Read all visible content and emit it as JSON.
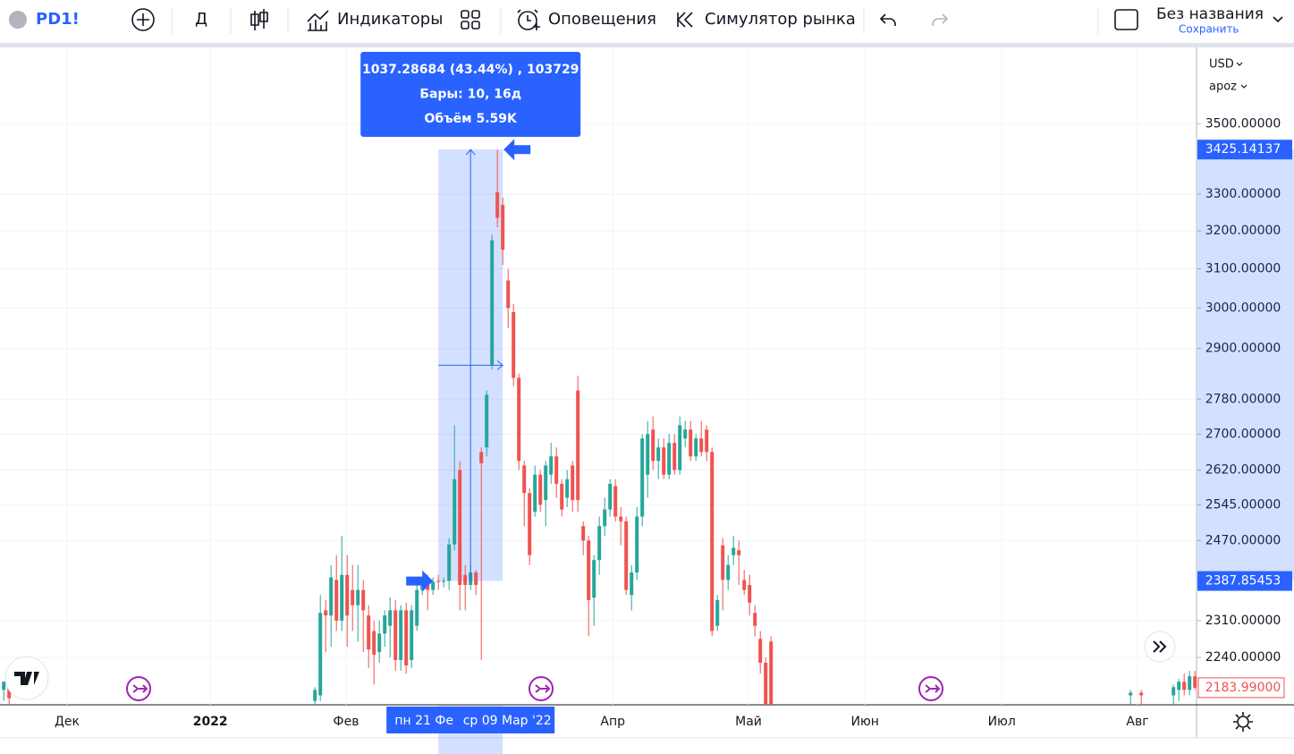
{
  "toolbar": {
    "symbol": "PD1!",
    "interval": "Д",
    "indicators": "Индикаторы",
    "alerts": "Оповещения",
    "replay": "Симулятор рынка",
    "layout_name": "Без названия",
    "save": "Сохранить"
  },
  "chart_data": {
    "type": "candlestick",
    "currency": "USD",
    "scale_mode": "apoz",
    "x": [
      -59,
      -58,
      -1,
      0,
      1,
      2,
      3,
      4,
      5,
      6,
      7,
      8,
      9,
      10,
      11,
      12,
      13,
      14,
      15,
      16,
      17,
      18,
      19,
      20,
      21,
      22,
      23,
      24,
      25,
      26,
      27,
      28,
      29,
      30,
      31,
      32,
      33,
      34,
      35,
      36,
      37,
      38,
      39,
      40,
      41,
      42,
      43,
      44,
      45,
      46,
      47,
      48,
      49,
      50,
      51,
      52,
      53,
      54,
      55,
      56,
      57,
      58,
      59,
      60,
      61,
      62,
      63,
      64,
      65,
      66,
      67,
      68,
      69,
      70,
      71,
      72,
      73,
      74,
      75,
      76,
      77,
      78,
      79,
      80,
      81,
      82,
      83,
      84,
      151,
      153,
      159,
      160,
      161,
      162,
      163
    ],
    "open": [
      2180,
      2190,
      2160,
      2170,
      2330,
      2320,
      2390,
      2310,
      2400,
      2370,
      2340,
      2370,
      2320,
      2290,
      2250,
      2285,
      2300,
      2330,
      2235,
      2330,
      2235,
      2300,
      2370,
      2388,
      2370,
      2388,
      2386,
      2388,
      2462,
      2620,
      2400,
      2380,
      2405,
      2660,
      2670,
      2860,
      3305,
      3270,
      3070,
      2990,
      2830,
      2630,
      2570,
      2530,
      2610,
      2555,
      2610,
      2650,
      2590,
      2560,
      2630,
      2800,
      2500,
      2470,
      2355,
      2430,
      2500,
      2535,
      2585,
      2520,
      2510,
      2360,
      2405,
      2520,
      2610,
      2710,
      2640,
      2670,
      2610,
      2680,
      2620,
      2690,
      2710,
      2650,
      2690,
      2710,
      2660,
      2300,
      2460,
      2390,
      2440,
      2450,
      2390,
      2380,
      2325,
      2275,
      2230,
      2270,
      2170,
      2175,
      2170,
      2180,
      2195,
      2180,
      2205
    ],
    "high": [
      2195,
      2200,
      2185,
      2360,
      2350,
      2420,
      2440,
      2480,
      2440,
      2420,
      2420,
      2390,
      2340,
      2310,
      2310,
      2330,
      2355,
      2350,
      2340,
      2345,
      2340,
      2380,
      2390,
      2400,
      2395,
      2400,
      2395,
      2475,
      2720,
      2640,
      2420,
      2420,
      2410,
      2670,
      2800,
      3190,
      3425,
      3290,
      3100,
      3010,
      2840,
      2640,
      2580,
      2630,
      2620,
      2640,
      2680,
      2670,
      2600,
      2620,
      2640,
      2835,
      2510,
      2480,
      2440,
      2520,
      2560,
      2600,
      2600,
      2540,
      2520,
      2420,
      2540,
      2700,
      2730,
      2740,
      2690,
      2690,
      2700,
      2700,
      2740,
      2730,
      2730,
      2700,
      2730,
      2720,
      2670,
      2360,
      2475,
      2440,
      2480,
      2470,
      2410,
      2400,
      2340,
      2290,
      2240,
      2280,
      2180,
      2180,
      2190,
      2200,
      2210,
      2215,
      2215
    ],
    "low": [
      2160,
      2150,
      2153,
      2160,
      2250,
      2260,
      2290,
      2290,
      2260,
      2290,
      2270,
      2250,
      2220,
      2190,
      2230,
      2260,
      2240,
      2215,
      2215,
      2210,
      2220,
      2290,
      2360,
      2330,
      2360,
      2370,
      2375,
      2370,
      2450,
      2330,
      2330,
      2370,
      2360,
      2235,
      2650,
      2850,
      3210,
      3110,
      2950,
      2810,
      2620,
      2500,
      2420,
      2520,
      2530,
      2500,
      2590,
      2560,
      2520,
      2540,
      2530,
      2530,
      2440,
      2280,
      2300,
      2400,
      2480,
      2520,
      2510,
      2460,
      2360,
      2330,
      2390,
      2500,
      2560,
      2620,
      2600,
      2600,
      2600,
      2610,
      2610,
      2670,
      2640,
      2640,
      2650,
      2640,
      2280,
      2290,
      2330,
      2370,
      2420,
      2380,
      2360,
      2320,
      2280,
      2210,
      2150,
      2140,
      2150,
      2150,
      2150,
      2160,
      2170,
      2170,
      2180
    ],
    "close": [
      2195,
      2165,
      2180,
      2325,
      2320,
      2395,
      2310,
      2400,
      2320,
      2340,
      2370,
      2330,
      2255,
      2245,
      2285,
      2320,
      2330,
      2235,
      2330,
      2225,
      2330,
      2370,
      2385,
      2370,
      2386,
      2386,
      2388,
      2462,
      2600,
      2380,
      2380,
      2405,
      2380,
      2635,
      2790,
      3175,
      3235,
      3150,
      3000,
      2830,
      2640,
      2570,
      2440,
      2610,
      2545,
      2630,
      2650,
      2590,
      2535,
      2600,
      2555,
      2555,
      2470,
      2350,
      2430,
      2500,
      2535,
      2590,
      2520,
      2510,
      2370,
      2405,
      2520,
      2690,
      2700,
      2640,
      2670,
      2610,
      2680,
      2620,
      2720,
      2710,
      2650,
      2690,
      2660,
      2660,
      2290,
      2350,
      2390,
      2420,
      2455,
      2440,
      2370,
      2345,
      2300,
      2230,
      2153,
      2150,
      2175,
      2170,
      2185,
      2195,
      2180,
      2205,
      2184
    ],
    "up_color": "#26a69a",
    "down_color": "#ef5350",
    "xlim": [
      -59.7,
      163.3
    ],
    "xticks": [
      {
        "value": -47.2,
        "label": "Дек"
      },
      {
        "value": -20.5,
        "label": "2022"
      },
      {
        "value": 4.8,
        "label": "Фев"
      },
      {
        "value": 54.5,
        "label": "Апр"
      },
      {
        "value": 79.8,
        "label": "Май"
      },
      {
        "value": 101.5,
        "label": "Июн"
      },
      {
        "value": 127,
        "label": "Июл"
      },
      {
        "value": 152.3,
        "label": "Авг"
      }
    ],
    "ylim": [
      2153,
      3725
    ],
    "log_scale": true,
    "grid": true,
    "yticks": [
      {
        "value": 3500,
        "label": "3500.00000"
      },
      {
        "value": 3300,
        "label": "3300.00000"
      },
      {
        "value": 3200,
        "label": "3200.00000"
      },
      {
        "value": 3100,
        "label": "3100.00000"
      },
      {
        "value": 3000,
        "label": "3000.00000"
      },
      {
        "value": 2900,
        "label": "2900.00000"
      },
      {
        "value": 2780,
        "label": "2780.00000"
      },
      {
        "value": 2700,
        "label": "2700.00000"
      },
      {
        "value": 2620,
        "label": "2620.00000"
      },
      {
        "value": 2545,
        "label": "2545.00000"
      },
      {
        "value": 2470,
        "label": "2470.00000"
      },
      {
        "value": 2310,
        "label": "2310.00000"
      },
      {
        "value": 2240,
        "label": "2240.00000"
      }
    ],
    "measure": {
      "from": 2387.85453,
      "to": 3425.14137,
      "x_range": [
        22,
        34
      ],
      "color": "#2962ff",
      "lines": [
        "1037.28684 (43.44%) , 103729",
        "Бары: 10, 16д",
        "Объём 5.59K"
      ],
      "date_labels": [
        "пн 21 Фе",
        "ср 09 Мар '22"
      ]
    },
    "last_price": {
      "value": 2183.99,
      "label": "2183.99000"
    }
  }
}
